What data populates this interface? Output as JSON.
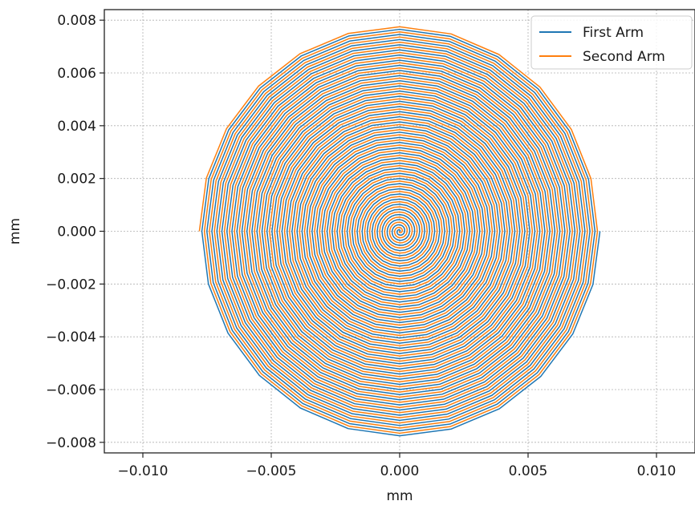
{
  "chart_data": {
    "type": "line",
    "title": "",
    "xlabel": "mm",
    "ylabel": "mm",
    "xlim": [
      -0.0115,
      0.0115
    ],
    "ylim": [
      -0.0084,
      0.0084
    ],
    "xticks": [
      -0.01,
      -0.005,
      0.0,
      0.005,
      0.01
    ],
    "xtick_labels": [
      "−0.010",
      "−0.005",
      "0.000",
      "0.005",
      "0.010"
    ],
    "yticks": [
      -0.008,
      -0.006,
      -0.004,
      -0.002,
      0.0,
      0.002,
      0.004,
      0.006,
      0.008
    ],
    "ytick_labels": [
      "−0.008",
      "−0.006",
      "−0.004",
      "−0.002",
      "0.000",
      "0.002",
      "0.004",
      "0.006",
      "0.008"
    ],
    "grid": true,
    "legend_position": "top-right",
    "spiral": {
      "kind": "archimedean",
      "turns": 40,
      "points_per_turn": 24,
      "outer_radius": 0.0078
    },
    "series": [
      {
        "name": "First Arm",
        "color": "#1f77b4",
        "phase_deg": 0
      },
      {
        "name": "Second Arm",
        "color": "#ff7f0e",
        "phase_deg": 180
      }
    ]
  }
}
